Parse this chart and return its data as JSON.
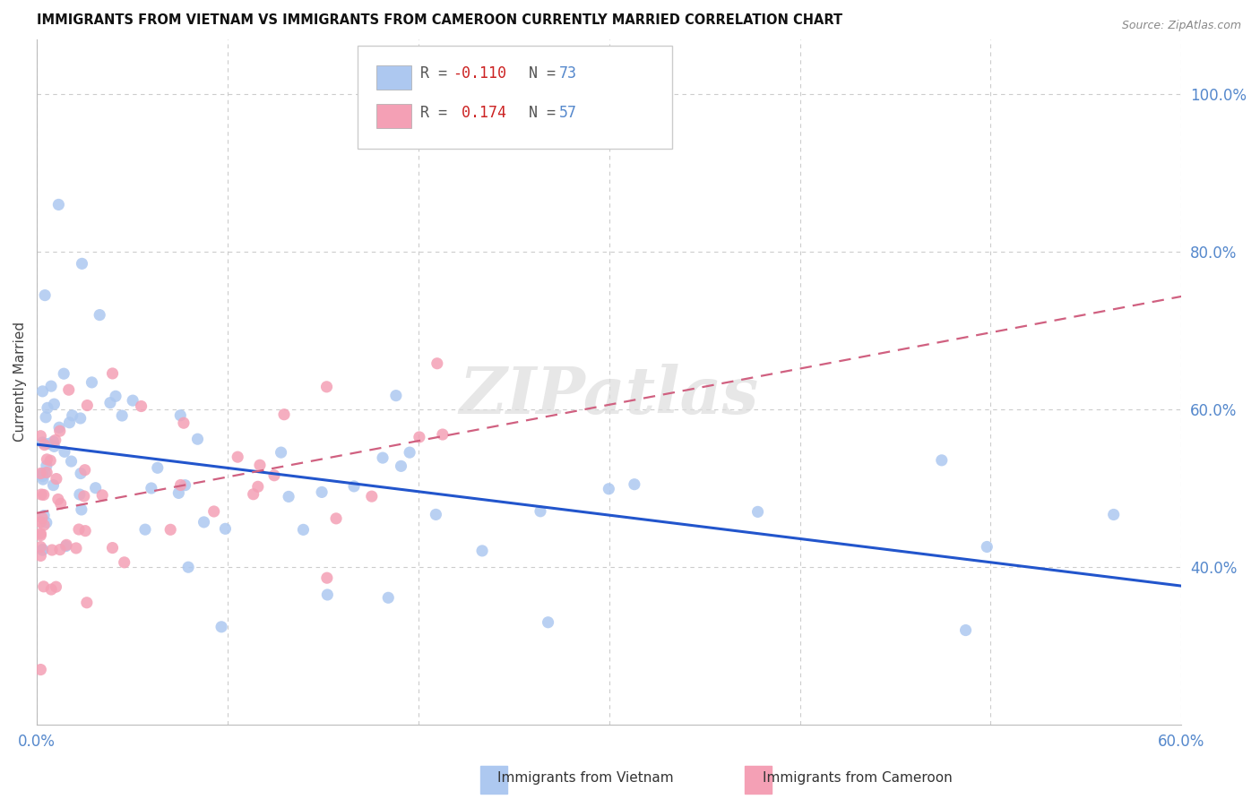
{
  "title": "IMMIGRANTS FROM VIETNAM VS IMMIGRANTS FROM CAMEROON CURRENTLY MARRIED CORRELATION CHART",
  "source": "Source: ZipAtlas.com",
  "ylabel": "Currently Married",
  "xlabel": "",
  "xlim": [
    0.0,
    0.6
  ],
  "ylim": [
    0.2,
    1.07
  ],
  "yticks_right": [
    0.4,
    0.6,
    0.8,
    1.0
  ],
  "ytick_labels_right": [
    "40.0%",
    "60.0%",
    "80.0%",
    "100.0%"
  ],
  "vietnam_color": "#adc8f0",
  "cameroon_color": "#f4a0b5",
  "vietnam_line_color": "#2255cc",
  "cameroon_line_color": "#d06080",
  "axis_label_color": "#5588cc",
  "grid_color": "#cccccc",
  "background_color": "#ffffff",
  "watermark": "ZIPatlas",
  "legend_vietnam_label": "R = -0.110   N = 73",
  "legend_cameroon_label": "R =  0.174   N = 57",
  "legend_r1_color": "#cc0000",
  "legend_n1_color": "#2255cc",
  "legend_r2_color": "#cc0000",
  "legend_n2_color": "#2255cc",
  "vietnam_seed": 42,
  "cameroon_seed": 99,
  "viet_intercept": 0.535,
  "viet_slope": -0.12,
  "cam_intercept": 0.475,
  "cam_slope": 0.22
}
